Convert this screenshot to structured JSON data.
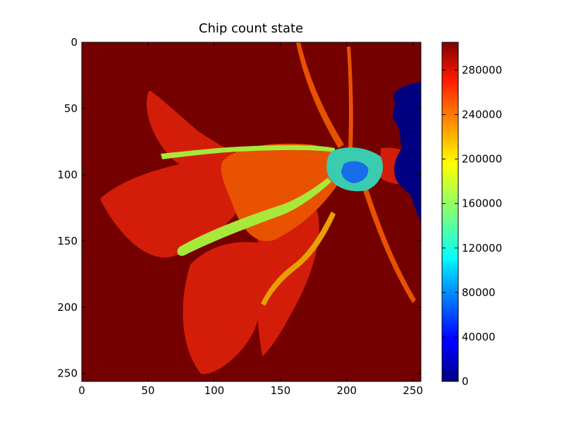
{
  "chart_data": {
    "type": "heatmap",
    "title": "Chip count state",
    "xlabel": "",
    "ylabel": "",
    "xlim": [
      0,
      256
    ],
    "ylim": [
      256,
      0
    ],
    "x_ticks": [
      0,
      50,
      100,
      150,
      200,
      250
    ],
    "y_ticks": [
      0,
      50,
      100,
      150,
      200,
      250
    ],
    "colorbar": {
      "colormap": "jet",
      "range": [
        0,
        305000
      ],
      "ticks": [
        0,
        40000,
        80000,
        120000,
        160000,
        200000,
        240000,
        280000
      ]
    },
    "background_value": 300000,
    "colors": {
      "background": "#800000",
      "petal": "#e8200a",
      "petal_bright": "#ff5a00",
      "vein": "#ffb000",
      "highlight": "#b8ff40",
      "center": "#40e0c0",
      "center_core": "#1a78ff",
      "corner_region": "#00008f"
    },
    "image_content": {
      "grid_size": [
        256,
        256
      ],
      "note_value_levels": {
        "background": 300000,
        "petals": 270000,
        "veins": 220000,
        "pistil": 170000,
        "flower_center": 120000,
        "center_core": 70000,
        "right_edge_region": 5000
      }
    }
  }
}
